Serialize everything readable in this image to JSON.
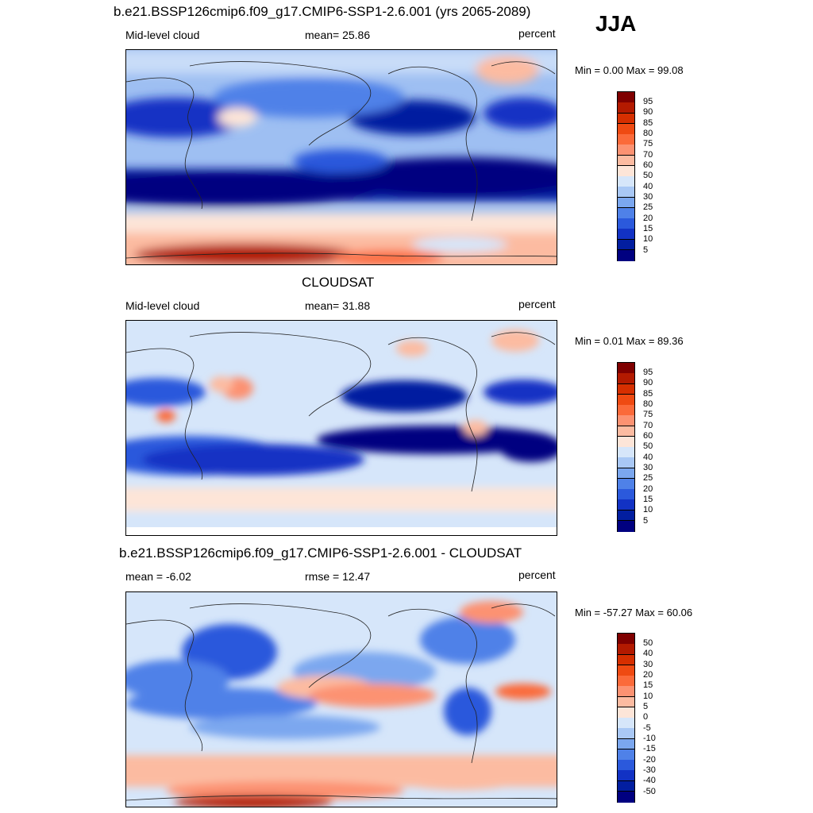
{
  "season": "JJA",
  "panels": [
    {
      "title": "b.e21.BSSP126cmip6.f09_g17.CMIP6-SSP1-2.6.001 (yrs 2065-2089)",
      "left_label": "Mid-level cloud",
      "center_label": "mean=  25.86",
      "right_label": "percent",
      "minmax": "Min =    0.00 Max =  99.08",
      "colorbar_labels": [
        "95",
        "90",
        "85",
        "80",
        "75",
        "70",
        "60",
        "50",
        "40",
        "30",
        "25",
        "20",
        "15",
        "10",
        "5"
      ],
      "colorbar_colors": [
        "#7f0000",
        "#b31a00",
        "#d62f00",
        "#ef4a12",
        "#fb6a3a",
        "#fc9272",
        "#fcbba1",
        "#fde5d8",
        "#d6e6fa",
        "#a9c8f5",
        "#7ba7ef",
        "#4f81e8",
        "#2b59dc",
        "#1232c4",
        "#021ea0",
        "#000080"
      ]
    },
    {
      "title": "CLOUDSAT",
      "left_label": "Mid-level cloud",
      "center_label": "mean=  31.88",
      "right_label": "percent",
      "minmax": "Min =    0.01 Max =  89.36",
      "colorbar_labels": [
        "95",
        "90",
        "85",
        "80",
        "75",
        "70",
        "60",
        "50",
        "40",
        "30",
        "25",
        "20",
        "15",
        "10",
        "5"
      ],
      "colorbar_colors": [
        "#7f0000",
        "#b31a00",
        "#d62f00",
        "#ef4a12",
        "#fb6a3a",
        "#fc9272",
        "#fcbba1",
        "#fde5d8",
        "#d6e6fa",
        "#a9c8f5",
        "#7ba7ef",
        "#4f81e8",
        "#2b59dc",
        "#1232c4",
        "#021ea0",
        "#000080"
      ]
    },
    {
      "title": "b.e21.BSSP126cmip6.f09_g17.CMIP6-SSP1-2.6.001 - CLOUDSAT",
      "left_label": "mean =  -6.02",
      "center_label": "rmse =  12.47",
      "right_label": "percent",
      "minmax": "Min = -57.27 Max =  60.06",
      "colorbar_labels": [
        "50",
        "40",
        "30",
        "20",
        "15",
        "10",
        "5",
        "0",
        "-5",
        "-10",
        "-15",
        "-20",
        "-30",
        "-40",
        "-50"
      ],
      "colorbar_colors": [
        "#7f0000",
        "#b31a00",
        "#d62f00",
        "#ef4a12",
        "#fb6a3a",
        "#fc9272",
        "#fcbba1",
        "#fde5d8",
        "#d6e6fa",
        "#a9c8f5",
        "#7ba7ef",
        "#4f81e8",
        "#2b59dc",
        "#1232c4",
        "#021ea0",
        "#000080"
      ]
    }
  ]
}
